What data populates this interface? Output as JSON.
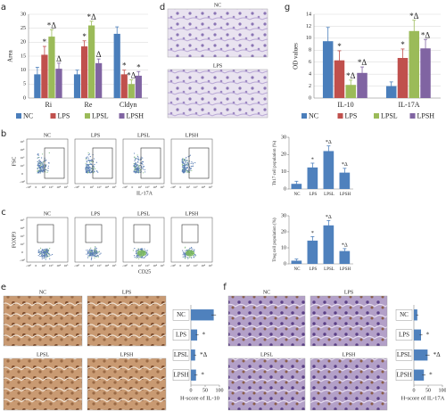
{
  "chart_data": [
    {
      "type": "bar",
      "panel": "a",
      "y_label": "Area",
      "categories": [
        "Ri",
        "Re",
        "Cldyn"
      ],
      "ylim": [
        0,
        30
      ],
      "yticks": [
        0,
        5,
        10,
        15,
        20,
        25,
        30
      ],
      "grid": true,
      "series": [
        {
          "name": "NC",
          "color": "#4a7ebb",
          "values": [
            8.5,
            8.5,
            23
          ],
          "errors": [
            2.5,
            1.5,
            2.5
          ],
          "annotations": [
            null,
            null,
            null
          ]
        },
        {
          "name": "LPS",
          "color": "#c0504d",
          "values": [
            15.5,
            18.5,
            8.5
          ],
          "errors": [
            3,
            2,
            1.5
          ],
          "annotations": [
            "*",
            "*",
            "*"
          ]
        },
        {
          "name": "LPSL",
          "color": "#9bbb59",
          "values": [
            22,
            26,
            5
          ],
          "errors": [
            2.5,
            1.5,
            1.5
          ],
          "annotations": [
            "*Δ",
            "*Δ",
            "*Δ"
          ]
        },
        {
          "name": "LPSH",
          "color": "#8064a2",
          "values": [
            10.5,
            12.5,
            8
          ],
          "errors": [
            2,
            1.5,
            1.5
          ],
          "annotations": [
            "Δ",
            "Δ",
            "*"
          ]
        }
      ]
    },
    {
      "type": "bar",
      "panel": "g",
      "y_label": "OD values",
      "categories": [
        "IL-10",
        "IL-17A"
      ],
      "ylim": [
        0,
        14
      ],
      "yticks": [
        0,
        2,
        4,
        6,
        8,
        10,
        12,
        14
      ],
      "grid": true,
      "series": [
        {
          "name": "NC",
          "color": "#4a7ebb",
          "values": [
            9.5,
            2
          ],
          "errors": [
            2.3,
            0.7
          ],
          "annotations": [
            null,
            null
          ]
        },
        {
          "name": "LPS",
          "color": "#c0504d",
          "values": [
            6.3,
            6.7
          ],
          "errors": [
            1.6,
            1.5
          ],
          "annotations": [
            "*",
            "*"
          ]
        },
        {
          "name": "LPSL",
          "color": "#9bbb59",
          "values": [
            2.2,
            11.2
          ],
          "errors": [
            0.8,
            1.8
          ],
          "annotations": [
            "*Δ",
            "*Δ"
          ]
        },
        {
          "name": "LPSH",
          "color": "#8064a2",
          "values": [
            4.2,
            8.3
          ],
          "errors": [
            1,
            1.5
          ],
          "annotations": [
            "*Δ",
            "*Δ"
          ]
        }
      ]
    },
    {
      "type": "bar",
      "panel": "b",
      "y_label": "Th17 cell population (%)",
      "categories": [
        "NC",
        "LPS",
        "LPSL",
        "LPSH"
      ],
      "values": [
        3,
        12.5,
        22,
        9.5
      ],
      "errors": [
        1.5,
        2.5,
        3,
        2.5
      ],
      "annotations": [
        null,
        "*",
        "*Δ",
        "*Δ"
      ],
      "color": "#4f81bd",
      "ylim": [
        0,
        30
      ],
      "yticks": [
        0,
        10,
        20,
        30
      ],
      "grid": false
    },
    {
      "type": "bar",
      "panel": "c",
      "y_label": "Treg cell population (%)",
      "categories": [
        "NC",
        "LPS",
        "LPSL",
        "LPSH"
      ],
      "values": [
        2,
        14.5,
        24,
        8
      ],
      "errors": [
        1,
        2.5,
        3,
        1.5
      ],
      "annotations": [
        null,
        "*",
        "*Δ",
        "*Δ"
      ],
      "color": "#4f81bd",
      "ylim": [
        0,
        30
      ],
      "yticks": [
        0,
        10,
        20,
        30
      ],
      "grid": false
    },
    {
      "type": "barh",
      "panel": "e",
      "x_label": "H-score of IL-10",
      "categories": [
        "NC",
        "LPS",
        "LPSL",
        "LPSH"
      ],
      "values": [
        80,
        22,
        15,
        18
      ],
      "errors": [
        8,
        5,
        4,
        5
      ],
      "annotations": [
        null,
        "*",
        "*Δ",
        "*"
      ],
      "color": "#4f81bd",
      "xlim": [
        0,
        100
      ],
      "xticks": [
        0,
        50,
        100
      ],
      "image_titles": [
        "NC",
        "LPS",
        "LPSL",
        "LPSH"
      ]
    },
    {
      "type": "barh",
      "panel": "f",
      "x_label": "H-score of IL-17A",
      "categories": [
        "NC",
        "LPS",
        "LPSL",
        "LPSH"
      ],
      "values": [
        12,
        25,
        48,
        35
      ],
      "errors": [
        4,
        5,
        7,
        6
      ],
      "annotations": [
        null,
        "*",
        "*Δ",
        "*"
      ],
      "color": "#4f81bd",
      "xlim": [
        0,
        100
      ],
      "xticks": [
        0,
        50,
        100
      ],
      "image_titles": [
        "NC",
        "LPS",
        "LPSL",
        "LPSH"
      ]
    }
  ],
  "flow_cytometry": [
    {
      "titles": [
        "NC",
        "LPS",
        "LPSL",
        "LPSH"
      ],
      "y_label": "FSC",
      "x_label": "IL-17A",
      "ticks": [
        "-10⁰",
        "0",
        "10²",
        "10³",
        "10⁴",
        "10⁵"
      ]
    },
    {
      "titles": [
        "NC",
        "LPS",
        "LPSL",
        "LPSH"
      ],
      "y_label": "FOXP3",
      "x_label": "CD25",
      "ticks": [
        "-10⁰",
        "0",
        "10²",
        "10³",
        "10⁴",
        "10⁵"
      ]
    }
  ],
  "micrographs": {
    "panel": "d",
    "titles": [
      "NC",
      "LPS"
    ]
  }
}
